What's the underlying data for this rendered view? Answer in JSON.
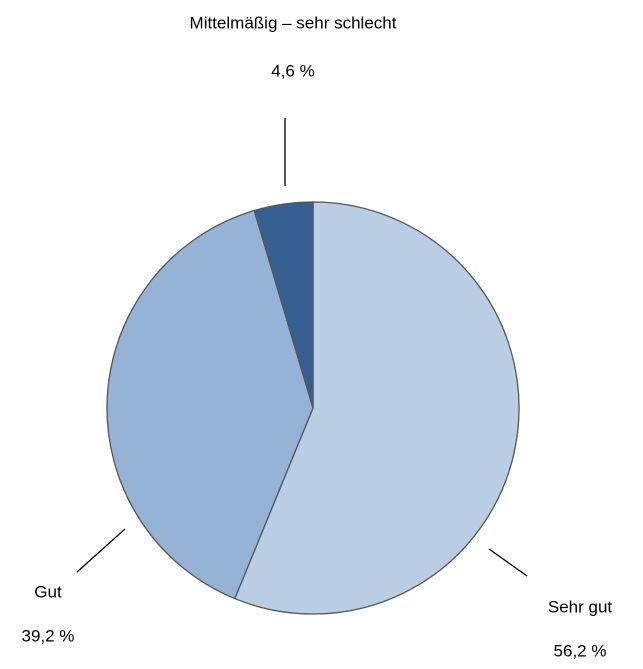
{
  "chart_data": {
    "type": "pie",
    "categories": [
      "Sehr gut",
      "Gut",
      "Mittelmäßig – sehr schlecht"
    ],
    "values": [
      56.2,
      39.2,
      4.6
    ],
    "value_labels": [
      "56,2 %",
      "39,2 %",
      "4,6 %"
    ],
    "colors": [
      "#b9cde5",
      "#95b3d7",
      "#376092"
    ]
  }
}
